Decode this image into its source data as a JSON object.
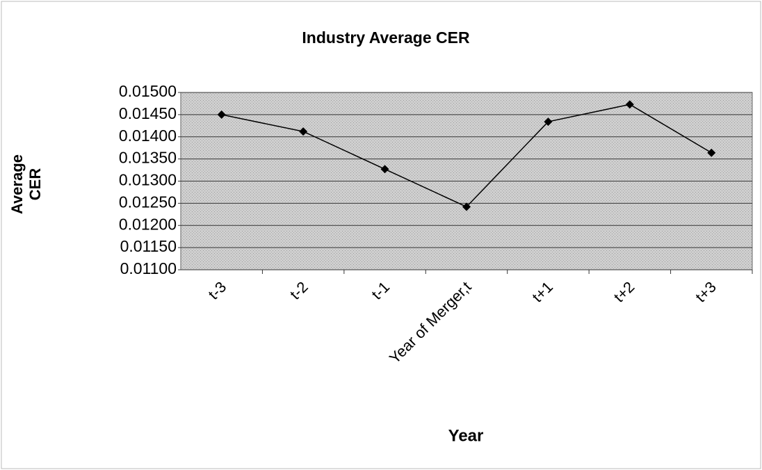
{
  "chart_data": {
    "type": "line",
    "title": "Industry Average CER",
    "x_label": "Year",
    "y_label": "Average CER",
    "categories": [
      "t-3",
      "t-2",
      "t-1",
      "Year of Merger,t",
      "t+1",
      "t+2",
      "t+3"
    ],
    "series": [
      {
        "name": "Average CER",
        "color": "#000000",
        "values": [
          0.0145,
          0.01412,
          0.01327,
          0.01242,
          0.01434,
          0.01473,
          0.01364
        ]
      }
    ],
    "ylim": [
      0.011,
      0.015
    ],
    "yticks": [
      {
        "value": 0.011,
        "label": "0.01100"
      },
      {
        "value": 0.0115,
        "label": "0.01150"
      },
      {
        "value": 0.012,
        "label": "0.01200"
      },
      {
        "value": 0.0125,
        "label": "0.01250"
      },
      {
        "value": 0.013,
        "label": "0.01300"
      },
      {
        "value": 0.0135,
        "label": "0.01350"
      },
      {
        "value": 0.014,
        "label": "0.01400"
      },
      {
        "value": 0.0145,
        "label": "0.01450"
      },
      {
        "value": 0.015,
        "label": "0.01500"
      }
    ],
    "grid": true
  }
}
